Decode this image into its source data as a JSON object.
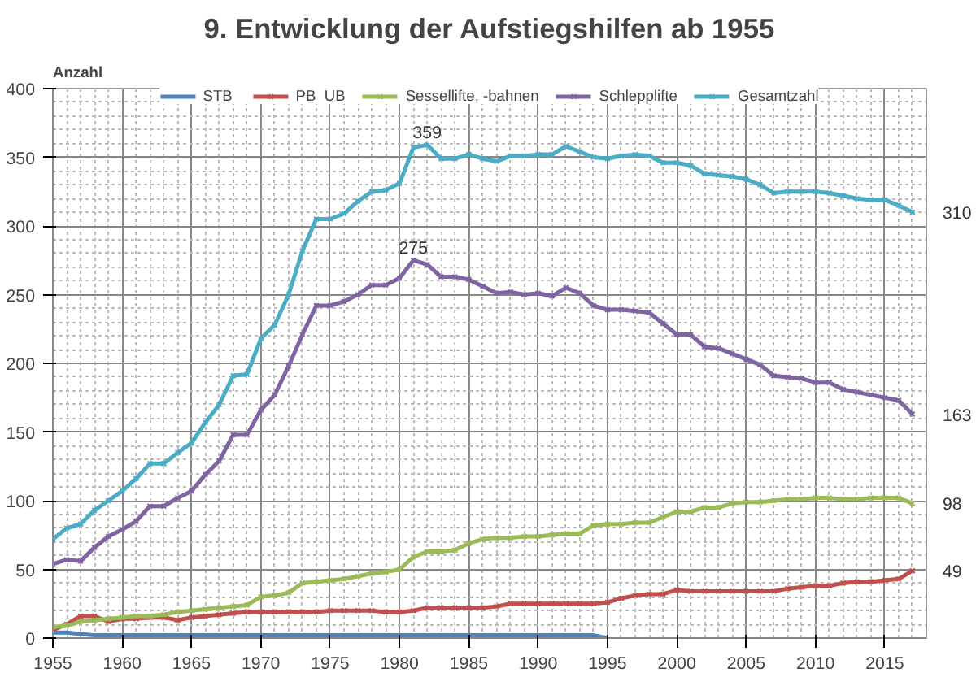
{
  "chart_data": {
    "type": "line",
    "title": "9. Entwicklung der Aufstiegshilfen ab 1955",
    "ylabel": "Anzahl",
    "x": [
      1955,
      1956,
      1957,
      1958,
      1959,
      1960,
      1961,
      1962,
      1963,
      1964,
      1965,
      1966,
      1967,
      1968,
      1969,
      1970,
      1971,
      1972,
      1973,
      1974,
      1975,
      1976,
      1977,
      1978,
      1979,
      1980,
      1981,
      1982,
      1983,
      1984,
      1985,
      1986,
      1987,
      1988,
      1989,
      1990,
      1991,
      1992,
      1993,
      1994,
      1995,
      1996,
      1997,
      1998,
      1999,
      2000,
      2001,
      2002,
      2003,
      2004,
      2005,
      2006,
      2007,
      2008,
      2009,
      2010,
      2011,
      2012,
      2013,
      2014,
      2015,
      2016,
      2017
    ],
    "series": [
      {
        "name": "STB",
        "color": "#4f81bd",
        "marker": "none",
        "values": [
          4,
          4,
          3,
          2,
          2,
          2,
          2,
          2,
          2,
          2,
          2,
          2,
          2,
          2,
          2,
          2,
          2,
          2,
          2,
          2,
          2,
          2,
          2,
          2,
          2,
          2,
          2,
          2,
          2,
          2,
          2,
          2,
          2,
          2,
          2,
          2,
          2,
          2,
          2,
          2,
          0,
          null,
          null,
          null,
          null,
          null,
          null,
          null,
          null,
          null,
          null,
          null,
          null,
          null,
          null,
          null,
          null,
          null,
          null,
          null,
          null,
          null,
          null
        ]
      },
      {
        "name": "PB  UB",
        "color": "#c0504d",
        "values": [
          6,
          10,
          16,
          16,
          12,
          14,
          14,
          15,
          15,
          13,
          15,
          16,
          17,
          18,
          19,
          19,
          19,
          19,
          19,
          19,
          20,
          20,
          20,
          20,
          19,
          19,
          20,
          22,
          22,
          22,
          22,
          22,
          23,
          25,
          25,
          25,
          25,
          25,
          25,
          25,
          26,
          29,
          31,
          32,
          32,
          35,
          34,
          34,
          34,
          34,
          34,
          34,
          34,
          36,
          37,
          38,
          38,
          40,
          41,
          41,
          42,
          43,
          49
        ],
        "value_labels": [
          null,
          null,
          null,
          null,
          null,
          null,
          null,
          null,
          null,
          null,
          null,
          null,
          null,
          null,
          null,
          null,
          null,
          null,
          null,
          null,
          null,
          null,
          null,
          null,
          null,
          null,
          null,
          null,
          null,
          null,
          null,
          null,
          null,
          null,
          null,
          null,
          null,
          null,
          null,
          null,
          null,
          null,
          null,
          null,
          null,
          null,
          null,
          null,
          null,
          null,
          null,
          null,
          null,
          null,
          null,
          null,
          null,
          null,
          null,
          null,
          null,
          null,
          "49"
        ]
      },
      {
        "name": "Sessellifte, -bahnen",
        "color": "#9bbb59",
        "values": [
          8,
          9,
          12,
          13,
          14,
          15,
          16,
          16,
          17,
          19,
          20,
          21,
          22,
          23,
          24,
          30,
          31,
          33,
          40,
          41,
          42,
          43,
          45,
          47,
          48,
          50,
          59,
          63,
          63,
          64,
          69,
          72,
          73,
          73,
          74,
          74,
          75,
          76,
          76,
          82,
          83,
          83,
          84,
          84,
          88,
          92,
          92,
          95,
          95,
          98,
          99,
          99,
          100,
          101,
          101,
          102,
          102,
          101,
          101,
          102,
          102,
          102,
          98
        ],
        "value_labels": [
          null,
          null,
          null,
          null,
          null,
          null,
          null,
          null,
          null,
          null,
          null,
          null,
          null,
          null,
          null,
          null,
          null,
          null,
          null,
          null,
          null,
          null,
          null,
          null,
          null,
          null,
          null,
          null,
          null,
          null,
          null,
          null,
          null,
          null,
          null,
          null,
          null,
          null,
          null,
          null,
          null,
          null,
          null,
          null,
          null,
          null,
          null,
          null,
          null,
          null,
          null,
          null,
          null,
          null,
          null,
          null,
          null,
          null,
          null,
          null,
          null,
          null,
          "98"
        ]
      },
      {
        "name": "Schlepplifte",
        "color": "#8064a2",
        "values": [
          54,
          57,
          56,
          66,
          74,
          79,
          85,
          96,
          96,
          102,
          107,
          119,
          129,
          148,
          148,
          166,
          177,
          198,
          221,
          242,
          242,
          245,
          250,
          257,
          257,
          262,
          275,
          272,
          263,
          263,
          261,
          256,
          251,
          252,
          250,
          251,
          249,
          255,
          251,
          242,
          239,
          239,
          238,
          237,
          229,
          221,
          221,
          212,
          211,
          207,
          203,
          199,
          191,
          190,
          189,
          186,
          186,
          181,
          179,
          177,
          175,
          173,
          163
        ],
        "value_labels": [
          null,
          null,
          null,
          null,
          null,
          null,
          null,
          null,
          null,
          null,
          null,
          null,
          null,
          null,
          null,
          null,
          null,
          null,
          null,
          null,
          null,
          null,
          null,
          null,
          null,
          null,
          "275",
          null,
          null,
          null,
          null,
          null,
          null,
          null,
          null,
          null,
          null,
          null,
          null,
          null,
          null,
          null,
          null,
          null,
          null,
          null,
          null,
          null,
          null,
          null,
          null,
          null,
          null,
          null,
          null,
          null,
          null,
          null,
          null,
          null,
          null,
          null,
          "163"
        ]
      },
      {
        "name": "Gesamtzahl",
        "color": "#4bacc6",
        "values": [
          72,
          80,
          83,
          93,
          100,
          107,
          116,
          127,
          127,
          135,
          142,
          157,
          170,
          191,
          192,
          218,
          228,
          250,
          282,
          305,
          305,
          309,
          318,
          325,
          326,
          331,
          357,
          359,
          349,
          349,
          352,
          349,
          347,
          351,
          351,
          352,
          352,
          358,
          354,
          350,
          349,
          351,
          352,
          351,
          346,
          346,
          344,
          338,
          337,
          336,
          334,
          330,
          324,
          325,
          325,
          325,
          324,
          322,
          320,
          319,
          319,
          315,
          310
        ],
        "value_labels": [
          null,
          null,
          null,
          null,
          null,
          null,
          null,
          null,
          null,
          null,
          null,
          null,
          null,
          null,
          null,
          null,
          null,
          null,
          null,
          null,
          null,
          null,
          null,
          null,
          null,
          null,
          null,
          "359",
          null,
          null,
          null,
          null,
          null,
          null,
          null,
          null,
          null,
          null,
          null,
          null,
          null,
          null,
          null,
          null,
          null,
          null,
          null,
          null,
          null,
          null,
          null,
          null,
          null,
          null,
          null,
          null,
          null,
          null,
          null,
          null,
          null,
          null,
          "310"
        ]
      }
    ],
    "xlim": [
      1955,
      2018
    ],
    "xticks": [
      1955,
      1960,
      1965,
      1970,
      1975,
      1980,
      1985,
      1990,
      1995,
      2000,
      2005,
      2010,
      2015
    ],
    "ylim": [
      0,
      400
    ],
    "yticks": [
      0,
      50,
      100,
      150,
      200,
      250,
      300,
      350,
      400
    ],
    "grid": true,
    "legend": "top",
    "marker": "cross",
    "line_style": "solid"
  }
}
